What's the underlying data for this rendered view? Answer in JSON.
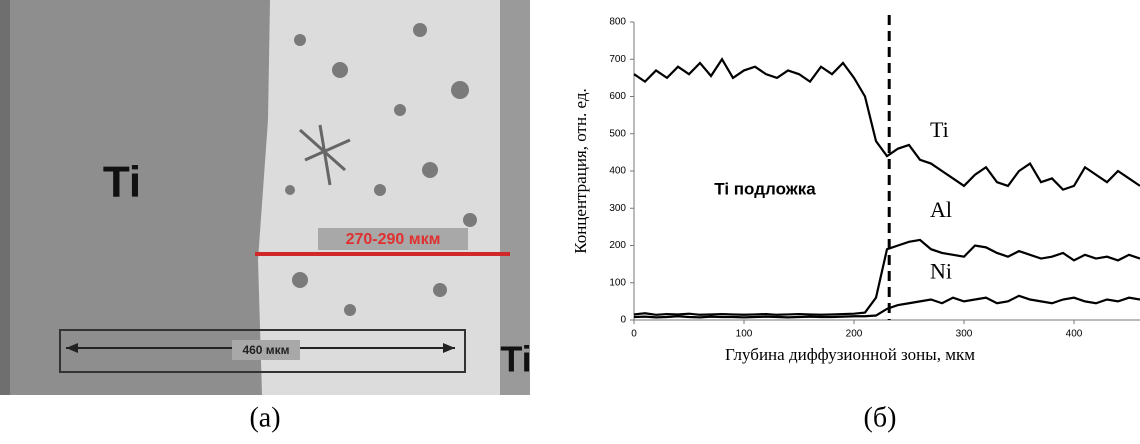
{
  "image": {
    "labels": [
      "Ti",
      "270-290 мкм",
      "460 мкм",
      "Ti"
    ],
    "caption": "(а)"
  },
  "chart_data": {
    "type": "line",
    "caption": "(б)",
    "x_label": "Глубина диффузионной зоны, мкм",
    "y_label": "Концентрация, отн. ед.",
    "annotation": "Ti подложка",
    "boundary_x": 232,
    "xlim": [
      0,
      460
    ],
    "xticks": [
      0,
      100,
      200,
      300,
      400
    ],
    "ylim": [
      0,
      800
    ],
    "yticks": [
      0,
      100,
      200,
      300,
      400,
      500,
      600,
      700,
      800
    ],
    "x": [
      0,
      10,
      20,
      30,
      40,
      50,
      60,
      70,
      80,
      90,
      100,
      110,
      120,
      130,
      140,
      150,
      160,
      170,
      180,
      190,
      200,
      210,
      220,
      230,
      240,
      250,
      260,
      270,
      280,
      290,
      300,
      310,
      320,
      330,
      340,
      350,
      360,
      370,
      380,
      390,
      400,
      410,
      420,
      430,
      440,
      450,
      460
    ],
    "series": [
      {
        "name": "Ti",
        "color": "#000000",
        "values": [
          660,
          640,
          670,
          650,
          680,
          660,
          690,
          655,
          700,
          650,
          670,
          680,
          660,
          650,
          670,
          660,
          640,
          680,
          660,
          690,
          650,
          600,
          480,
          440,
          460,
          470,
          430,
          420,
          400,
          380,
          360,
          390,
          410,
          370,
          360,
          400,
          420,
          370,
          380,
          350,
          360,
          410,
          390,
          370,
          400,
          380,
          360
        ]
      },
      {
        "name": "Al",
        "color": "#000000",
        "values": [
          15,
          18,
          14,
          16,
          15,
          17,
          14,
          15,
          16,
          15,
          14,
          15,
          16,
          14,
          15,
          16,
          15,
          14,
          15,
          16,
          17,
          20,
          60,
          190,
          200,
          210,
          215,
          190,
          180,
          175,
          170,
          200,
          195,
          180,
          170,
          185,
          175,
          165,
          170,
          180,
          160,
          175,
          165,
          170,
          160,
          175,
          165
        ]
      },
      {
        "name": "Ni",
        "color": "#000000",
        "values": [
          8,
          9,
          7,
          8,
          10,
          8,
          7,
          9,
          8,
          8,
          7,
          8,
          9,
          8,
          7,
          8,
          9,
          8,
          8,
          9,
          10,
          10,
          12,
          30,
          40,
          45,
          50,
          55,
          45,
          60,
          50,
          55,
          60,
          45,
          50,
          65,
          55,
          50,
          45,
          55,
          60,
          50,
          45,
          55,
          50,
          60,
          55
        ]
      }
    ]
  }
}
